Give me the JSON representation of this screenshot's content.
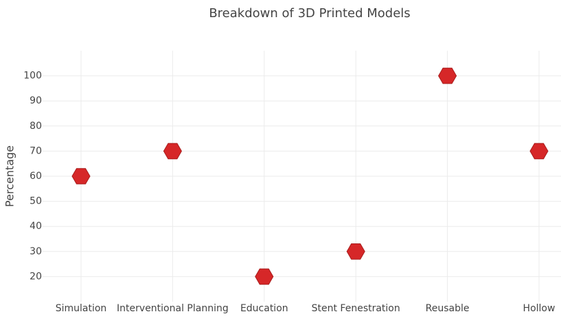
{
  "chart_data": {
    "type": "scatter",
    "title": "Breakdown of 3D Printed Models",
    "y_label": "Percentage",
    "categories": [
      "Simulation",
      "Interventional Planning",
      "Education",
      "Stent Fenestration",
      "Reusable",
      "Hollow"
    ],
    "values": [
      60,
      70,
      20,
      30,
      100,
      70
    ],
    "color": "#d62728",
    "marker": "hexagon",
    "ylim": [
      10,
      110
    ],
    "yticks": [
      20,
      30,
      40,
      50,
      60,
      70,
      80,
      90,
      100
    ],
    "grid": true
  }
}
